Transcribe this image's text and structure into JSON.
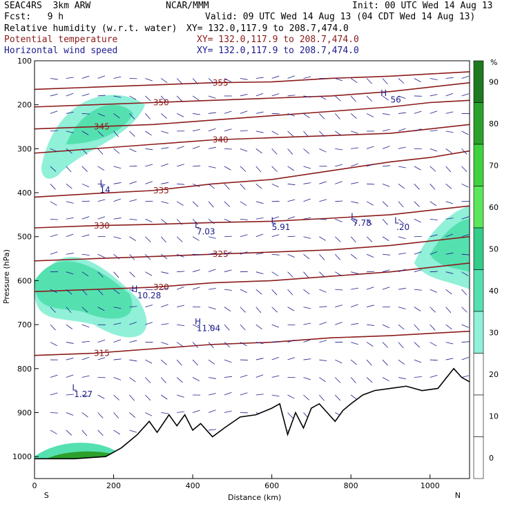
{
  "header": {
    "model": "SEAC4RS  3km ARW",
    "center": "NCAR/MMM",
    "init": "Init: 00 UTC Wed 14 Aug 13",
    "fcst": "Fcst:   9 h",
    "valid": "Valid: 09 UTC Wed 14 Aug 13 (04 CDT Wed 14 Aug 13)",
    "fields": [
      {
        "name": "Relative humidity (w.r.t. water)",
        "xy": "XY= 132.0,117.9 to 208.7,474.0",
        "color": "#000000"
      },
      {
        "name": "Potential temperature",
        "xy": "XY= 132.0,117.9 to 208.7,474.0",
        "color": "#8b1a1a"
      },
      {
        "name": "Horizontal wind speed",
        "xy": "XY= 132.0,117.9 to 208.7,474.0",
        "color": "#1a1a8c"
      }
    ]
  },
  "chart_data": {
    "type": "cross-section",
    "xlabel": "Distance (km)",
    "ylabel": "Pressure (hPa)",
    "xlim": [
      0,
      1100
    ],
    "ylim": [
      1050,
      100
    ],
    "x_ticks": [
      0,
      200,
      400,
      600,
      800,
      1000
    ],
    "y_ticks": [
      100,
      200,
      300,
      400,
      500,
      600,
      700,
      800,
      900,
      1000
    ],
    "x_end_labels": [
      "S",
      "N"
    ],
    "colorbar": {
      "unit": "%",
      "levels": [
        90,
        80,
        70,
        60,
        50,
        40,
        30,
        20,
        10,
        0
      ],
      "colors": [
        "#1f7a1f",
        "#2ca02c",
        "#3fd13f",
        "#5ce65c",
        "#33cc88",
        "#55e0b0",
        "#90f0d8",
        "#ffffff",
        "#ffffff",
        "#ffffff"
      ]
    },
    "terrain": [
      [
        0,
        1005
      ],
      [
        100,
        1005
      ],
      [
        180,
        1000
      ],
      [
        220,
        980
      ],
      [
        260,
        950
      ],
      [
        290,
        920
      ],
      [
        310,
        945
      ],
      [
        340,
        905
      ],
      [
        360,
        930
      ],
      [
        380,
        905
      ],
      [
        400,
        940
      ],
      [
        420,
        925
      ],
      [
        450,
        955
      ],
      [
        480,
        935
      ],
      [
        520,
        910
      ],
      [
        560,
        905
      ],
      [
        600,
        890
      ],
      [
        620,
        880
      ],
      [
        640,
        950
      ],
      [
        660,
        900
      ],
      [
        680,
        935
      ],
      [
        700,
        890
      ],
      [
        720,
        880
      ],
      [
        740,
        900
      ],
      [
        760,
        920
      ],
      [
        780,
        895
      ],
      [
        800,
        880
      ],
      [
        830,
        860
      ],
      [
        860,
        850
      ],
      [
        900,
        845
      ],
      [
        940,
        840
      ],
      [
        980,
        850
      ],
      [
        1020,
        845
      ],
      [
        1060,
        800
      ],
      [
        1080,
        820
      ],
      [
        1100,
        830
      ]
    ],
    "theta_contours": [
      {
        "label": "315",
        "points": [
          [
            0,
            770
          ],
          [
            150,
            765
          ],
          [
            300,
            755
          ],
          [
            450,
            745
          ],
          [
            600,
            740
          ],
          [
            750,
            730
          ],
          [
            900,
            725
          ],
          [
            1000,
            720
          ],
          [
            1100,
            715
          ]
        ]
      },
      {
        "label": "320",
        "points": [
          [
            0,
            625
          ],
          [
            150,
            620
          ],
          [
            300,
            615
          ],
          [
            450,
            605
          ],
          [
            600,
            600
          ],
          [
            750,
            590
          ],
          [
            900,
            580
          ],
          [
            1000,
            570
          ],
          [
            1100,
            560
          ]
        ]
      },
      {
        "label": "325",
        "points": [
          [
            0,
            555
          ],
          [
            150,
            550
          ],
          [
            300,
            545
          ],
          [
            450,
            540
          ],
          [
            600,
            535
          ],
          [
            750,
            530
          ],
          [
            900,
            520
          ],
          [
            1000,
            510
          ],
          [
            1100,
            500
          ]
        ]
      },
      {
        "label": "330",
        "points": [
          [
            0,
            480
          ],
          [
            150,
            475
          ],
          [
            300,
            472
          ],
          [
            450,
            468
          ],
          [
            600,
            465
          ],
          [
            750,
            458
          ],
          [
            900,
            450
          ],
          [
            1000,
            440
          ],
          [
            1100,
            430
          ]
        ]
      },
      {
        "label": "335",
        "points": [
          [
            0,
            410
          ],
          [
            150,
            402
          ],
          [
            300,
            395
          ],
          [
            450,
            380
          ],
          [
            600,
            370
          ],
          [
            750,
            350
          ],
          [
            900,
            330
          ],
          [
            1000,
            320
          ],
          [
            1100,
            305
          ]
        ]
      },
      {
        "label": "340",
        "points": [
          [
            0,
            310
          ],
          [
            150,
            300
          ],
          [
            300,
            290
          ],
          [
            450,
            280
          ],
          [
            600,
            275
          ],
          [
            750,
            270
          ],
          [
            900,
            265
          ],
          [
            1000,
            255
          ],
          [
            1100,
            245
          ]
        ]
      },
      {
        "label": "345",
        "points": [
          [
            0,
            255
          ],
          [
            150,
            250
          ],
          [
            300,
            245
          ],
          [
            450,
            235
          ],
          [
            600,
            225
          ],
          [
            750,
            215
          ],
          [
            900,
            205
          ],
          [
            1000,
            195
          ],
          [
            1100,
            190
          ]
        ]
      },
      {
        "label": "350",
        "points": [
          [
            0,
            205
          ],
          [
            150,
            200
          ],
          [
            300,
            195
          ],
          [
            450,
            190
          ],
          [
            600,
            185
          ],
          [
            750,
            180
          ],
          [
            900,
            170
          ],
          [
            1000,
            160
          ],
          [
            1100,
            150
          ]
        ]
      },
      {
        "label": "355",
        "points": [
          [
            0,
            165
          ],
          [
            150,
            160
          ],
          [
            300,
            155
          ],
          [
            450,
            150
          ],
          [
            600,
            148
          ],
          [
            750,
            140
          ],
          [
            900,
            135
          ],
          [
            1000,
            130
          ],
          [
            1100,
            125
          ]
        ]
      }
    ],
    "annotations": [
      {
        "text": "L",
        "x": 95,
        "p": 850,
        "color": "#1a1a8c"
      },
      {
        "text": "1.27",
        "x": 100,
        "p": 865,
        "color": "#1a1a8c"
      },
      {
        "text": "L",
        "x": 165,
        "p": 385,
        "color": "#1a1a8c"
      },
      {
        "text": "14",
        "x": 165,
        "p": 400,
        "color": "#1a1a8c"
      },
      {
        "text": "H",
        "x": 245,
        "p": 625,
        "color": "#1a1a8c"
      },
      {
        "text": "10.28",
        "x": 260,
        "p": 640,
        "color": "#1a1a8c"
      },
      {
        "text": "H",
        "x": 405,
        "p": 700,
        "color": "#1a1a8c"
      },
      {
        "text": "11.04",
        "x": 410,
        "p": 715,
        "color": "#1a1a8c"
      },
      {
        "text": "L",
        "x": 405,
        "p": 480,
        "color": "#1a1a8c"
      },
      {
        "text": "7.03",
        "x": 410,
        "p": 495,
        "color": "#1a1a8c"
      },
      {
        "text": "L",
        "x": 598,
        "p": 470,
        "color": "#1a1a8c"
      },
      {
        "text": "5.91",
        "x": 600,
        "p": 485,
        "color": "#1a1a8c"
      },
      {
        "text": "L",
        "x": 800,
        "p": 460,
        "color": "#1a1a8c"
      },
      {
        "text": "7.78",
        "x": 805,
        "p": 475,
        "color": "#1a1a8c"
      },
      {
        "text": "L",
        "x": 910,
        "p": 470,
        "color": "#1a1a8c"
      },
      {
        "text": ".20",
        "x": 915,
        "p": 485,
        "color": "#1a1a8c"
      },
      {
        "text": "H",
        "x": 875,
        "p": 180,
        "color": "#1a1a8c"
      },
      {
        "text": "56",
        "x": 900,
        "p": 195,
        "color": "#1a1a8c"
      }
    ]
  }
}
